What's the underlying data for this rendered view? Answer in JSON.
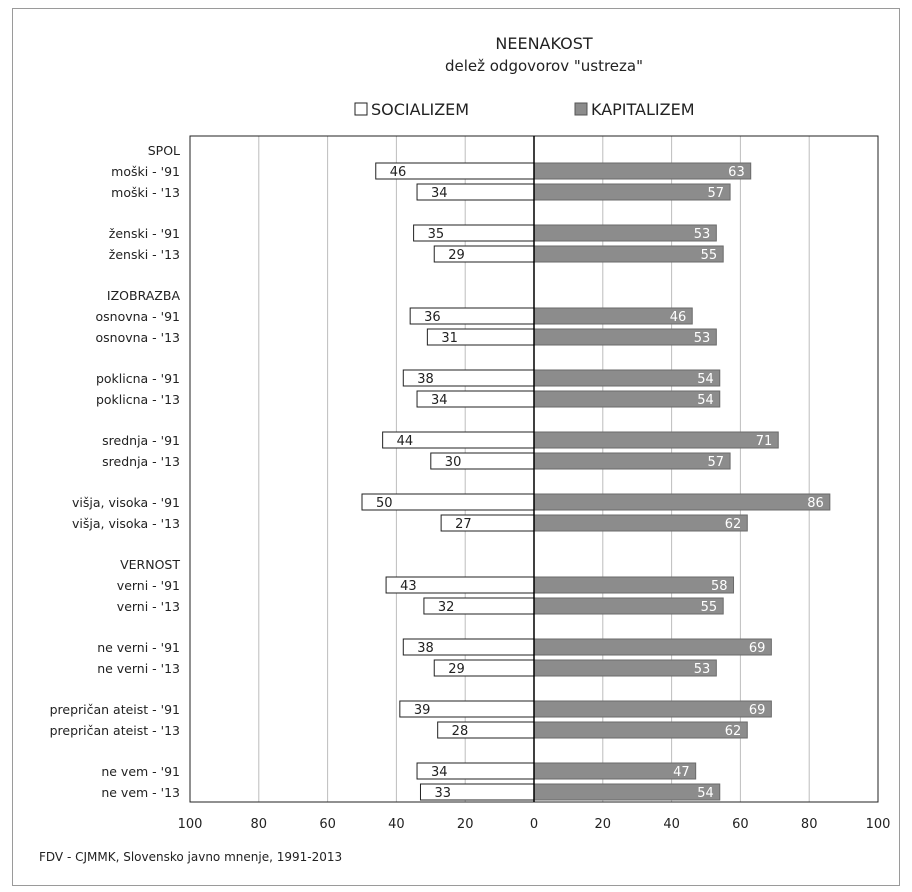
{
  "chart_data": {
    "type": "bar",
    "orientation": "horizontal-diverging",
    "title": "NEENAKOST",
    "subtitle": "delež odgovorov \"ustreza\"",
    "legend": {
      "items": [
        {
          "label": "SOCIALIZEM",
          "color": "#ffffff"
        },
        {
          "label": "KAPITALIZEM",
          "color": "#8c8c8c"
        }
      ],
      "placement": "top"
    },
    "xlim": [
      -100,
      100
    ],
    "xticks": [
      "100",
      "80",
      "60",
      "40",
      "20",
      "0",
      "20",
      "40",
      "60",
      "80",
      "100"
    ],
    "grid": "vertical",
    "rows": [
      {
        "label": "SPOL",
        "header": true
      },
      {
        "label": "moški - '91",
        "socializem": 46,
        "kapitalizem": 63
      },
      {
        "label": "moški - '13",
        "socializem": 34,
        "kapitalizem": 57
      },
      {
        "label": "ženski - '91",
        "socializem": 35,
        "kapitalizem": 53
      },
      {
        "label": "ženski - '13",
        "socializem": 29,
        "kapitalizem": 55
      },
      {
        "label": "IZOBRAZBA",
        "header": true
      },
      {
        "label": "osnovna - '91",
        "socializem": 36,
        "kapitalizem": 46
      },
      {
        "label": "osnovna - '13",
        "socializem": 31,
        "kapitalizem": 53
      },
      {
        "label": "poklicna - '91",
        "socializem": 38,
        "kapitalizem": 54
      },
      {
        "label": "poklicna - '13",
        "socializem": 34,
        "kapitalizem": 54
      },
      {
        "label": "srednja - '91",
        "socializem": 44,
        "kapitalizem": 71
      },
      {
        "label": "srednja - '13",
        "socializem": 30,
        "kapitalizem": 57
      },
      {
        "label": "višja, visoka - '91",
        "socializem": 50,
        "kapitalizem": 86
      },
      {
        "label": "višja, visoka - '13",
        "socializem": 27,
        "kapitalizem": 62
      },
      {
        "label": "VERNOST",
        "header": true
      },
      {
        "label": "verni - '91",
        "socializem": 43,
        "kapitalizem": 58
      },
      {
        "label": "verni - '13",
        "socializem": 32,
        "kapitalizem": 55
      },
      {
        "label": "ne verni - '91",
        "socializem": 38,
        "kapitalizem": 69
      },
      {
        "label": "ne verni - '13",
        "socializem": 29,
        "kapitalizem": 53
      },
      {
        "label": "prepričan ateist - '91",
        "socializem": 39,
        "kapitalizem": 69
      },
      {
        "label": "prepričan ateist - '13",
        "socializem": 28,
        "kapitalizem": 62
      },
      {
        "label": "ne vem - '91",
        "socializem": 34,
        "kapitalizem": 47
      },
      {
        "label": "ne vem - '13",
        "socializem": 33,
        "kapitalizem": 54
      }
    ],
    "source": "FDV - CJMMK, Slovensko javno mnenje, 1991-2013"
  }
}
